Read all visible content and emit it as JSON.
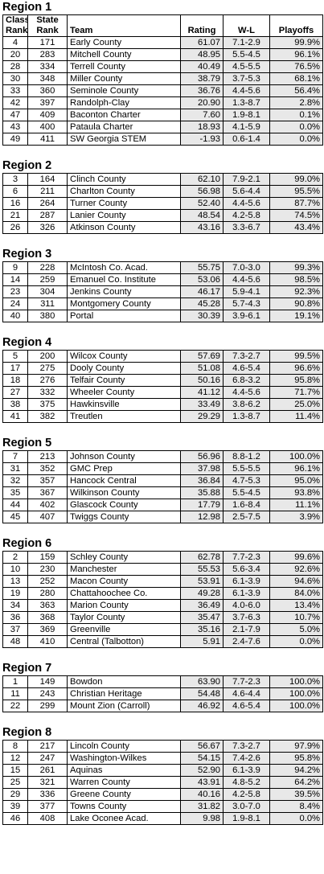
{
  "headers": {
    "class_rank_1": "Class",
    "class_rank_2": "Rank",
    "state_rank_1": "State",
    "state_rank_2": "Rank",
    "team": "Team",
    "rating": "Rating",
    "wl": "W-L",
    "playoffs": "Playoffs"
  },
  "regions": [
    {
      "title": "Region 1",
      "rows": [
        [
          "4",
          "171",
          "Early County",
          "61.07",
          "7.1-2.9",
          "99.9%"
        ],
        [
          "20",
          "283",
          "Mitchell County",
          "48.95",
          "5.5-4.5",
          "96.1%"
        ],
        [
          "28",
          "334",
          "Terrell County",
          "40.49",
          "4.5-5.5",
          "76.5%"
        ],
        [
          "30",
          "348",
          "Miller County",
          "38.79",
          "3.7-5.3",
          "68.1%"
        ],
        [
          "33",
          "360",
          "Seminole County",
          "36.76",
          "4.4-5.6",
          "56.4%"
        ],
        [
          "42",
          "397",
          "Randolph-Clay",
          "20.90",
          "1.3-8.7",
          "2.8%"
        ],
        [
          "47",
          "409",
          "Baconton Charter",
          "7.60",
          "1.9-8.1",
          "0.1%"
        ],
        [
          "43",
          "400",
          "Pataula Charter",
          "18.93",
          "4.1-5.9",
          "0.0%"
        ],
        [
          "49",
          "411",
          "SW Georgia STEM",
          "-1.93",
          "0.6-1.4",
          "0.0%"
        ]
      ]
    },
    {
      "title": "Region 2",
      "rows": [
        [
          "3",
          "164",
          "Clinch County",
          "62.10",
          "7.9-2.1",
          "99.0%"
        ],
        [
          "6",
          "211",
          "Charlton County",
          "56.98",
          "5.6-4.4",
          "95.5%"
        ],
        [
          "16",
          "264",
          "Turner County",
          "52.40",
          "4.4-5.6",
          "87.7%"
        ],
        [
          "21",
          "287",
          "Lanier County",
          "48.54",
          "4.2-5.8",
          "74.5%"
        ],
        [
          "26",
          "326",
          "Atkinson County",
          "43.16",
          "3.3-6.7",
          "43.4%"
        ]
      ]
    },
    {
      "title": "Region 3",
      "rows": [
        [
          "9",
          "228",
          "McIntosh Co. Acad.",
          "55.75",
          "7.0-3.0",
          "99.3%"
        ],
        [
          "14",
          "259",
          "Emanuel Co. Institute",
          "53.06",
          "4.4-5.6",
          "98.5%"
        ],
        [
          "23",
          "304",
          "Jenkins County",
          "46.17",
          "5.9-4.1",
          "92.3%"
        ],
        [
          "24",
          "311",
          "Montgomery County",
          "45.28",
          "5.7-4.3",
          "90.8%"
        ],
        [
          "40",
          "380",
          "Portal",
          "30.39",
          "3.9-6.1",
          "19.1%"
        ]
      ]
    },
    {
      "title": "Region 4",
      "rows": [
        [
          "5",
          "200",
          "Wilcox County",
          "57.69",
          "7.3-2.7",
          "99.5%"
        ],
        [
          "17",
          "275",
          "Dooly County",
          "51.08",
          "4.6-5.4",
          "96.6%"
        ],
        [
          "18",
          "276",
          "Telfair County",
          "50.16",
          "6.8-3.2",
          "95.8%"
        ],
        [
          "27",
          "332",
          "Wheeler County",
          "41.12",
          "4.4-5.6",
          "71.7%"
        ],
        [
          "38",
          "375",
          "Hawkinsville",
          "33.49",
          "3.8-6.2",
          "25.0%"
        ],
        [
          "41",
          "382",
          "Treutlen",
          "29.29",
          "1.3-8.7",
          "11.4%"
        ]
      ]
    },
    {
      "title": "Region 5",
      "rows": [
        [
          "7",
          "213",
          "Johnson County",
          "56.96",
          "8.8-1.2",
          "100.0%"
        ],
        [
          "31",
          "352",
          "GMC Prep",
          "37.98",
          "5.5-5.5",
          "96.1%"
        ],
        [
          "32",
          "357",
          "Hancock Central",
          "36.84",
          "4.7-5.3",
          "95.0%"
        ],
        [
          "35",
          "367",
          "Wilkinson County",
          "35.88",
          "5.5-4.5",
          "93.8%"
        ],
        [
          "44",
          "402",
          "Glascock County",
          "17.79",
          "1.6-8.4",
          "11.1%"
        ],
        [
          "45",
          "407",
          "Twiggs County",
          "12.98",
          "2.5-7.5",
          "3.9%"
        ]
      ]
    },
    {
      "title": "Region 6",
      "rows": [
        [
          "2",
          "159",
          "Schley County",
          "62.78",
          "7.7-2.3",
          "99.6%"
        ],
        [
          "10",
          "230",
          "Manchester",
          "55.53",
          "5.6-3.4",
          "92.6%"
        ],
        [
          "13",
          "252",
          "Macon County",
          "53.91",
          "6.1-3.9",
          "94.6%"
        ],
        [
          "19",
          "280",
          "Chattahoochee Co.",
          "49.28",
          "6.1-3.9",
          "84.0%"
        ],
        [
          "34",
          "363",
          "Marion County",
          "36.49",
          "4.0-6.0",
          "13.4%"
        ],
        [
          "36",
          "368",
          "Taylor County",
          "35.47",
          "3.7-6.3",
          "10.7%"
        ],
        [
          "37",
          "369",
          "Greenville",
          "35.16",
          "2.1-7.9",
          "5.0%"
        ],
        [
          "48",
          "410",
          "Central (Talbotton)",
          "5.91",
          "2.4-7.6",
          "0.0%"
        ]
      ]
    },
    {
      "title": "Region 7",
      "rows": [
        [
          "1",
          "149",
          "Bowdon",
          "63.90",
          "7.7-2.3",
          "100.0%"
        ],
        [
          "11",
          "243",
          "Christian Heritage",
          "54.48",
          "4.6-4.4",
          "100.0%"
        ],
        [
          "22",
          "299",
          "Mount Zion (Carroll)",
          "46.92",
          "4.6-5.4",
          "100.0%"
        ]
      ]
    },
    {
      "title": "Region 8",
      "rows": [
        [
          "8",
          "217",
          "Lincoln County",
          "56.67",
          "7.3-2.7",
          "97.9%"
        ],
        [
          "12",
          "247",
          "Washington-Wilkes",
          "54.15",
          "7.4-2.6",
          "95.8%"
        ],
        [
          "15",
          "261",
          "Aquinas",
          "52.90",
          "6.1-3.9",
          "94.2%"
        ],
        [
          "25",
          "321",
          "Warren County",
          "43.91",
          "4.8-5.2",
          "64.2%"
        ],
        [
          "29",
          "336",
          "Greene County",
          "40.16",
          "4.2-5.8",
          "39.5%"
        ],
        [
          "39",
          "377",
          "Towns County",
          "31.82",
          "3.0-7.0",
          "8.4%"
        ],
        [
          "46",
          "408",
          "Lake Oconee Acad.",
          "9.98",
          "1.9-8.1",
          "0.0%"
        ]
      ]
    }
  ]
}
